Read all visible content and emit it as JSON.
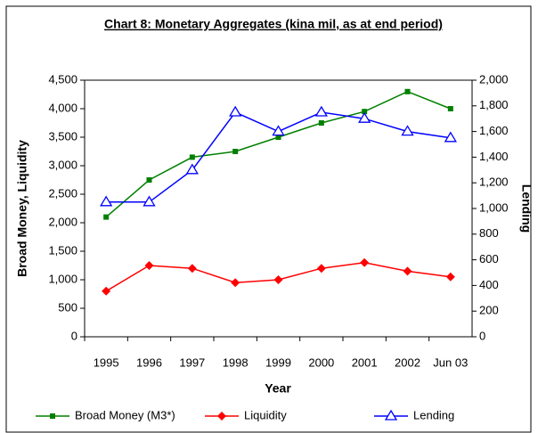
{
  "chart_data": {
    "type": "line",
    "title": "Chart 8: Monetary Aggregates (kina mil, as at end period)",
    "x_label": "Year",
    "y_label": "Broad Money, Liquidity",
    "y2_label": "Lending",
    "categories": [
      "1995",
      "1996",
      "1997",
      "1998",
      "1999",
      "2000",
      "2001",
      "2002",
      "Jun 03"
    ],
    "series": [
      {
        "name": "Broad Money (M3*)",
        "color": "#008000",
        "marker": "square",
        "values": [
          2100,
          2750,
          3150,
          3250,
          3500,
          3750,
          3950,
          4300,
          4000
        ]
      },
      {
        "name": "Liquidity",
        "color": "#ff0000",
        "marker": "diamond",
        "values": [
          800,
          1250,
          1200,
          950,
          1000,
          1200,
          1300,
          1150,
          1050
        ]
      },
      {
        "name": "Lending",
        "color": "#0000ff",
        "marker": "triangle",
        "axis": "y2",
        "values": [
          1050,
          1050,
          1300,
          1750,
          1600,
          1750,
          1700,
          1600,
          1550
        ]
      }
    ],
    "ylim": [
      0,
      4500
    ],
    "yticks": [
      0,
      500,
      {
        "value": 1000,
        "label": "1,000"
      },
      {
        "value": 1500,
        "label": "1,500"
      },
      {
        "value": 2000,
        "label": "2,000"
      },
      {
        "value": 2500,
        "label": "2,500"
      },
      {
        "value": 3000,
        "label": "3,000"
      },
      {
        "value": 3500,
        "label": "3,500"
      },
      {
        "value": 4000,
        "label": "4,000"
      },
      {
        "value": 4500,
        "label": "4,500"
      }
    ],
    "y2lim": [
      0,
      2000
    ],
    "y2ticks": [
      0,
      200,
      400,
      600,
      800,
      {
        "value": 1000,
        "label": "1,000"
      },
      {
        "value": 1200,
        "label": "1,200"
      },
      {
        "value": 1400,
        "label": "1,400"
      },
      {
        "value": 1600,
        "label": "1,600"
      },
      {
        "value": 1800,
        "label": "1,800"
      },
      {
        "value": 2000,
        "label": "2,000"
      }
    ],
    "legend": "bottom"
  }
}
